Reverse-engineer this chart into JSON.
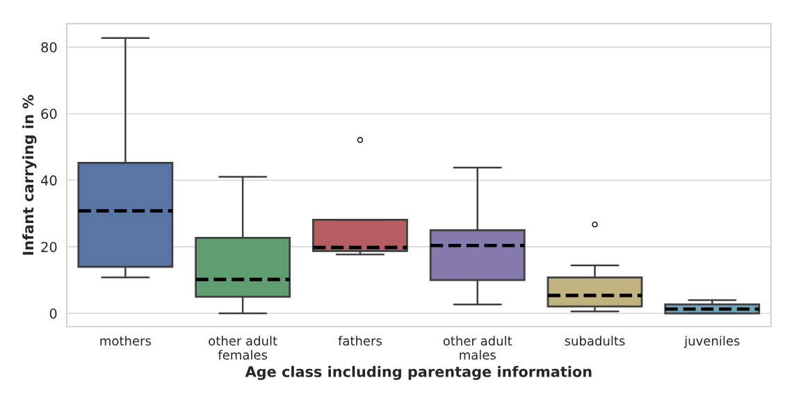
{
  "chart_data": {
    "type": "box",
    "xlabel": "Age class including parentage information",
    "ylabel": "Infant carrying in %",
    "categories": [
      "mothers",
      "other adult\nfemales",
      "fathers",
      "other adult\nmales",
      "subadults",
      "juveniles"
    ],
    "colors": [
      "#5875a4",
      "#5f9e6e",
      "#b55d60",
      "#857aab",
      "#c1b37f",
      "#6ea6b8"
    ],
    "boxes": [
      {
        "low": 10.8,
        "q1": 14.0,
        "median": 30.8,
        "q3": 45.2,
        "high": 82.7
      },
      {
        "low": 0,
        "q1": 5.0,
        "median": 10.2,
        "q3": 22.7,
        "high": 41.0
      },
      {
        "low": 17.7,
        "q1": 18.7,
        "median": 19.8,
        "q3": 28.1,
        "high": 28.1,
        "outliers": [
          52.1
        ]
      },
      {
        "low": 2.7,
        "q1": 10.0,
        "median": 20.4,
        "q3": 25.0,
        "high": 43.8
      },
      {
        "low": 0.6,
        "q1": 2.1,
        "median": 5.4,
        "q3": 10.8,
        "high": 14.4,
        "outliers": [
          26.7
        ]
      },
      {
        "low": 0,
        "q1": 0,
        "median": 1.3,
        "q3": 2.7,
        "high": 4.0
      }
    ],
    "ylim": [
      -4,
      87
    ],
    "yticks": [
      0,
      20,
      40,
      60,
      80
    ],
    "grid": "y",
    "line_style": "dashed"
  }
}
